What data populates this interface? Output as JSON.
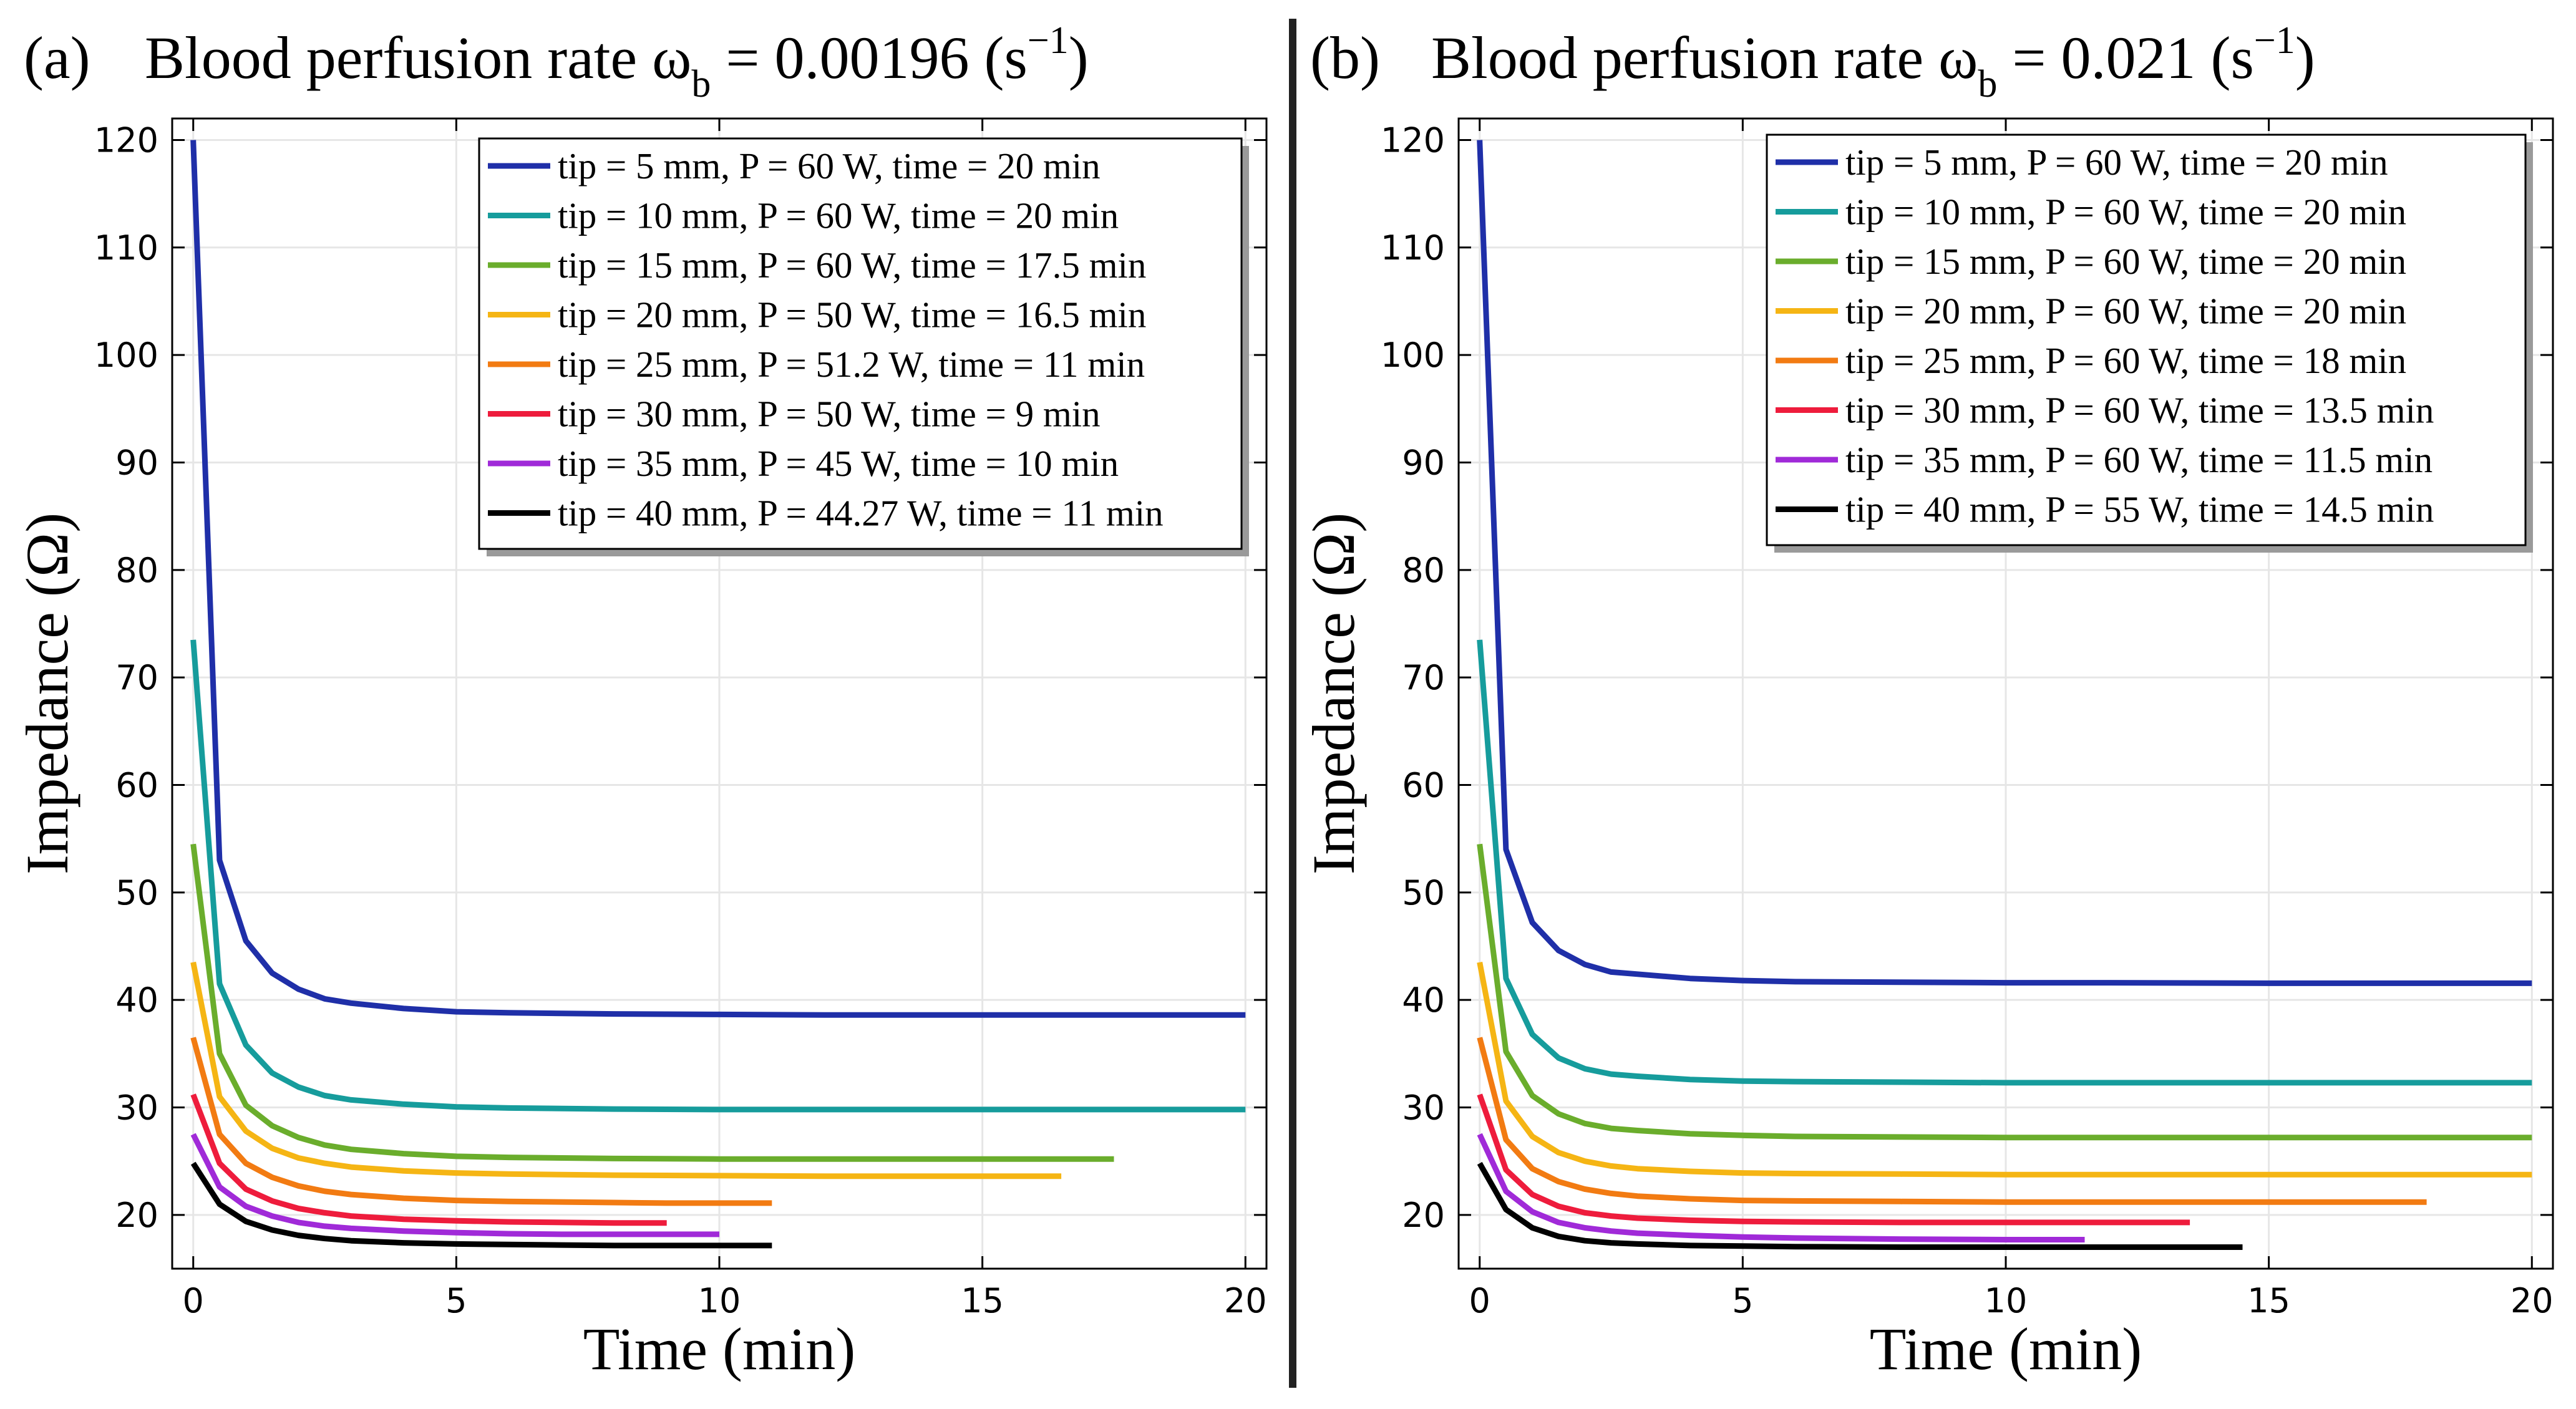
{
  "figure": {
    "divider_color": "#222222"
  },
  "panels": [
    {
      "panel_label": "(a)",
      "title_prefix": "Blood perfusion rate ω",
      "title_sub": "b",
      "title_eq": " = 0.00196 (s",
      "title_sup": "−1",
      "title_end": ")"
    },
    {
      "panel_label": "(b)",
      "title_prefix": "Blood perfusion rate ω",
      "title_sub": "b",
      "title_eq": " = 0.021 (s",
      "title_sup": "−1",
      "title_end": ")"
    }
  ],
  "chart_data": [
    {
      "type": "line",
      "title": "(a) Blood perfusion rate ωb = 0.00196 (s−1)",
      "xlabel": "Time (min)",
      "ylabel": "Impedance (Ω)",
      "xlim": [
        -0.4,
        20.4
      ],
      "ylim": [
        15,
        122
      ],
      "xticks": [
        0,
        5,
        10,
        15,
        20
      ],
      "yticks": [
        20,
        30,
        40,
        50,
        60,
        70,
        80,
        90,
        100,
        110,
        120
      ],
      "grid": true,
      "legend_position": "top-right",
      "series": [
        {
          "name": "tip = 5 mm, P = 60 W, time = 20 min",
          "color": "#1f2fa8",
          "x": [
            0,
            0.5,
            1,
            1.5,
            2,
            2.5,
            3,
            4,
            5,
            6,
            8,
            10,
            12,
            15,
            20
          ],
          "y": [
            120,
            53,
            45.5,
            42.5,
            41,
            40.1,
            39.7,
            39.2,
            38.9,
            38.8,
            38.7,
            38.65,
            38.6,
            38.6,
            38.6
          ]
        },
        {
          "name": "tip = 10 mm, P = 60 W, time = 20 min",
          "color": "#169c9c",
          "x": [
            0,
            0.5,
            1,
            1.5,
            2,
            2.5,
            3,
            4,
            5,
            6,
            8,
            10,
            12,
            15,
            20
          ],
          "y": [
            73.5,
            41.5,
            35.8,
            33.2,
            31.9,
            31.1,
            30.7,
            30.3,
            30.05,
            29.95,
            29.85,
            29.8,
            29.8,
            29.8,
            29.8
          ]
        },
        {
          "name": "tip = 15 mm, P = 60 W, time = 17.5 min",
          "color": "#6aad2c",
          "x": [
            0,
            0.5,
            1,
            1.5,
            2,
            2.5,
            3,
            4,
            5,
            6,
            8,
            10,
            12,
            15,
            17.5
          ],
          "y": [
            54.5,
            35,
            30.2,
            28.3,
            27.2,
            26.5,
            26.1,
            25.7,
            25.45,
            25.35,
            25.25,
            25.2,
            25.2,
            25.2,
            25.2
          ]
        },
        {
          "name": "tip = 20 mm, P = 50 W, time = 16.5 min",
          "color": "#f5b514",
          "x": [
            0,
            0.5,
            1,
            1.5,
            2,
            2.5,
            3,
            4,
            5,
            6,
            8,
            10,
            12,
            14,
            16.5
          ],
          "y": [
            43.5,
            31,
            27.8,
            26.2,
            25.3,
            24.8,
            24.45,
            24.1,
            23.9,
            23.8,
            23.7,
            23.65,
            23.6,
            23.6,
            23.6
          ]
        },
        {
          "name": "tip = 25 mm, P = 51.2 W, time = 11 min",
          "color": "#f27b12",
          "x": [
            0,
            0.5,
            1,
            1.5,
            2,
            2.5,
            3,
            4,
            5,
            6,
            8,
            9,
            10,
            11
          ],
          "y": [
            36.5,
            27.5,
            24.8,
            23.5,
            22.7,
            22.2,
            21.9,
            21.55,
            21.35,
            21.25,
            21.15,
            21.1,
            21.1,
            21.1
          ]
        },
        {
          "name": "tip = 30 mm, P = 50 W, time = 9 min",
          "color": "#ee1c3c",
          "x": [
            0,
            0.5,
            1,
            1.5,
            2,
            2.5,
            3,
            4,
            5,
            6,
            7,
            8,
            9
          ],
          "y": [
            31.2,
            24.8,
            22.4,
            21.3,
            20.6,
            20.2,
            19.9,
            19.6,
            19.45,
            19.35,
            19.3,
            19.25,
            19.25
          ]
        },
        {
          "name": "tip = 35 mm, P = 45 W, time = 10 min",
          "color": "#a02ad8",
          "x": [
            0,
            0.5,
            1,
            1.5,
            2,
            2.5,
            3,
            4,
            5,
            6,
            7,
            8,
            9,
            10
          ],
          "y": [
            27.5,
            22.6,
            20.8,
            19.9,
            19.3,
            18.95,
            18.75,
            18.5,
            18.35,
            18.25,
            18.2,
            18.2,
            18.2,
            18.2
          ]
        },
        {
          "name": "tip = 40 mm, P = 44.27 W, time = 11 min",
          "color": "#000000",
          "x": [
            0,
            0.5,
            1,
            1.5,
            2,
            2.5,
            3,
            4,
            5,
            6,
            7,
            8,
            9,
            10,
            11
          ],
          "y": [
            24.8,
            21,
            19.4,
            18.6,
            18.1,
            17.8,
            17.6,
            17.4,
            17.3,
            17.25,
            17.2,
            17.15,
            17.15,
            17.15,
            17.15
          ]
        }
      ]
    },
    {
      "type": "line",
      "title": "(b) Blood perfusion rate ωb = 0.021 (s−1)",
      "xlabel": "Time (min)",
      "ylabel": "Impedance (Ω)",
      "xlim": [
        -0.4,
        20.4
      ],
      "ylim": [
        15,
        122
      ],
      "xticks": [
        0,
        5,
        10,
        15,
        20
      ],
      "yticks": [
        20,
        30,
        40,
        50,
        60,
        70,
        80,
        90,
        100,
        110,
        120
      ],
      "grid": true,
      "legend_position": "top-right",
      "series": [
        {
          "name": "tip = 5 mm, P = 60 W, time = 20 min",
          "color": "#1f2fa8",
          "x": [
            0,
            0.5,
            1,
            1.5,
            2,
            2.5,
            3,
            4,
            5,
            6,
            8,
            10,
            12,
            15,
            20
          ],
          "y": [
            120,
            54,
            47.2,
            44.6,
            43.3,
            42.6,
            42.4,
            42,
            41.8,
            41.7,
            41.65,
            41.6,
            41.6,
            41.55,
            41.55
          ]
        },
        {
          "name": "tip = 10 mm, P = 60 W, time = 20 min",
          "color": "#169c9c",
          "x": [
            0,
            0.5,
            1,
            1.5,
            2,
            2.5,
            3,
            4,
            5,
            6,
            8,
            10,
            12,
            15,
            20
          ],
          "y": [
            73.5,
            42,
            36.8,
            34.6,
            33.6,
            33.1,
            32.9,
            32.6,
            32.45,
            32.4,
            32.35,
            32.3,
            32.3,
            32.3,
            32.3
          ]
        },
        {
          "name": "tip = 15 mm, P = 60 W, time = 20 min",
          "color": "#6aad2c",
          "x": [
            0,
            0.5,
            1,
            1.5,
            2,
            2.5,
            3,
            4,
            5,
            6,
            8,
            10,
            12,
            15,
            20
          ],
          "y": [
            54.5,
            35.2,
            31.1,
            29.4,
            28.5,
            28.05,
            27.85,
            27.55,
            27.4,
            27.3,
            27.25,
            27.2,
            27.2,
            27.2,
            27.2
          ]
        },
        {
          "name": "tip = 20 mm, P = 60 W, time = 20 min",
          "color": "#f5b514",
          "x": [
            0,
            0.5,
            1,
            1.5,
            2,
            2.5,
            3,
            4,
            5,
            6,
            8,
            10,
            12,
            15,
            20
          ],
          "y": [
            43.5,
            30.6,
            27.3,
            25.8,
            25,
            24.55,
            24.3,
            24.05,
            23.9,
            23.85,
            23.8,
            23.75,
            23.75,
            23.75,
            23.75
          ]
        },
        {
          "name": "tip = 25 mm, P = 60 W, time = 18 min",
          "color": "#f27b12",
          "x": [
            0,
            0.5,
            1,
            1.5,
            2,
            2.5,
            3,
            4,
            5,
            6,
            8,
            10,
            12,
            15,
            18
          ],
          "y": [
            36.5,
            27,
            24.3,
            23.1,
            22.4,
            22,
            21.75,
            21.5,
            21.35,
            21.3,
            21.25,
            21.2,
            21.2,
            21.2,
            21.2
          ]
        },
        {
          "name": "tip = 30 mm, P = 60 W, time = 13.5 min",
          "color": "#ee1c3c",
          "x": [
            0,
            0.5,
            1,
            1.5,
            2,
            2.5,
            3,
            4,
            5,
            6,
            8,
            10,
            12,
            13.5
          ],
          "y": [
            31.2,
            24.2,
            21.9,
            20.8,
            20.2,
            19.9,
            19.7,
            19.5,
            19.4,
            19.35,
            19.3,
            19.3,
            19.3,
            19.3
          ]
        },
        {
          "name": "tip = 35 mm, P = 60 W, time = 11.5 min",
          "color": "#a02ad8",
          "x": [
            0,
            0.5,
            1,
            1.5,
            2,
            2.5,
            3,
            4,
            5,
            6,
            8,
            10,
            11.5
          ],
          "y": [
            27.5,
            22.2,
            20.3,
            19.3,
            18.8,
            18.5,
            18.3,
            18.1,
            17.95,
            17.85,
            17.75,
            17.7,
            17.7
          ]
        },
        {
          "name": "tip = 40 mm, P = 55 W, time = 14.5 min",
          "color": "#000000",
          "x": [
            0,
            0.5,
            1,
            1.5,
            2,
            2.5,
            3,
            4,
            5,
            6,
            8,
            10,
            12,
            14.5
          ],
          "y": [
            24.8,
            20.5,
            18.8,
            18,
            17.6,
            17.4,
            17.3,
            17.15,
            17.1,
            17.05,
            17,
            17,
            17,
            17
          ]
        }
      ]
    }
  ]
}
